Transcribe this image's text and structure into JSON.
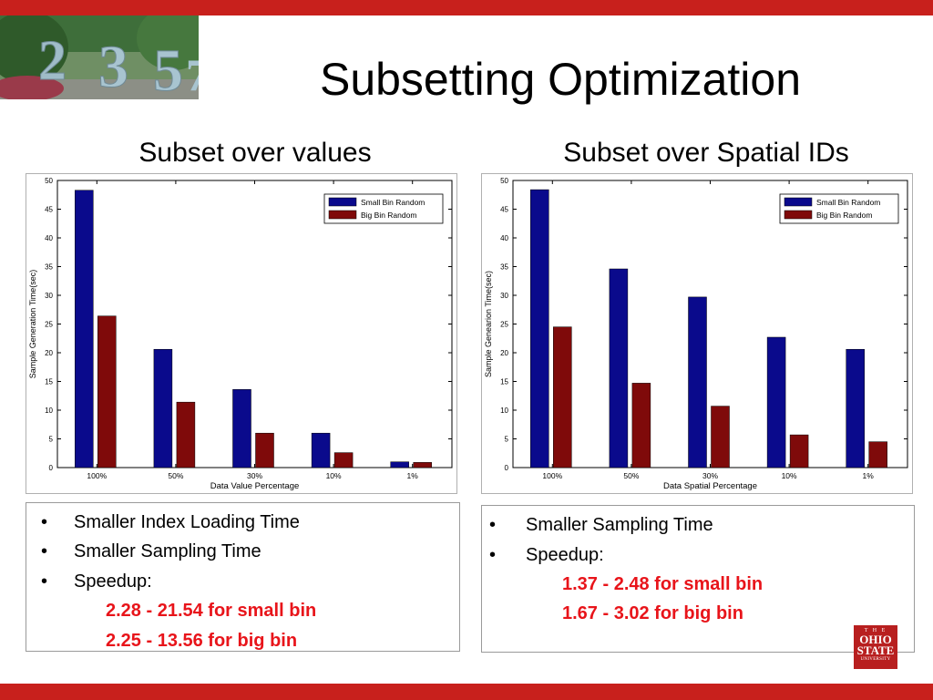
{
  "slide": {
    "title": "Subsetting Optimization",
    "left": {
      "subtitle": "Subset over values",
      "bullets": [
        "Smaller Index Loading Time",
        "Smaller Sampling Time",
        "Speedup:"
      ],
      "speedups": [
        "2.28 - 21.54 for small bin",
        "2.25 - 13.56 for big bin"
      ]
    },
    "right": {
      "subtitle": "Subset over Spatial IDs",
      "bullets": [
        "Smaller Sampling Time",
        "Speedup:"
      ],
      "speedups": [
        "1.37 - 2.48 for small bin",
        "1.67 - 3.02 for big bin"
      ]
    },
    "bullet_symbol": "•",
    "logo": {
      "line1": "T H E",
      "line2a": "OHIO",
      "line2b": "STATE",
      "line3": "UNIVERSITY"
    },
    "colors": {
      "accent_red": "#c8201c",
      "speedup_text": "#e8141a",
      "series_blue": "#0a0a8c",
      "series_red": "#7f0a0a"
    }
  },
  "chart_data": [
    {
      "type": "bar",
      "categories": [
        "100%",
        "50%",
        "30%",
        "10%",
        "1%"
      ],
      "series": [
        {
          "name": "Small Bin Random",
          "values": [
            48.3,
            20.6,
            13.6,
            6.0,
            1.0
          ],
          "color": "#0a0a8c"
        },
        {
          "name": "Big Bin Random",
          "values": [
            26.4,
            11.4,
            6.0,
            2.6,
            0.9
          ],
          "color": "#7f0a0a"
        }
      ],
      "xlabel": "Data Value Percentage",
      "ylabel": "Sample Generation Time(sec)",
      "ylim": [
        0,
        50
      ],
      "yticks": [
        0,
        5,
        10,
        15,
        20,
        25,
        30,
        35,
        40,
        45,
        50
      ],
      "legend": "top-right",
      "grid": false
    },
    {
      "type": "bar",
      "categories": [
        "100%",
        "50%",
        "30%",
        "10%",
        "1%"
      ],
      "series": [
        {
          "name": "Small Bin Random",
          "values": [
            48.4,
            34.6,
            29.7,
            22.7,
            20.6
          ],
          "color": "#0a0a8c"
        },
        {
          "name": "Big Bin Random",
          "values": [
            24.5,
            14.7,
            10.7,
            5.7,
            4.5
          ],
          "color": "#7f0a0a"
        }
      ],
      "xlabel": "Data Spatial Percentage",
      "ylabel": "Sample Genearion Time(sec)",
      "ylim": [
        0,
        50
      ],
      "yticks": [
        0,
        5,
        10,
        15,
        20,
        25,
        30,
        35,
        40,
        45,
        50
      ],
      "legend": "top-right",
      "grid": false
    }
  ]
}
